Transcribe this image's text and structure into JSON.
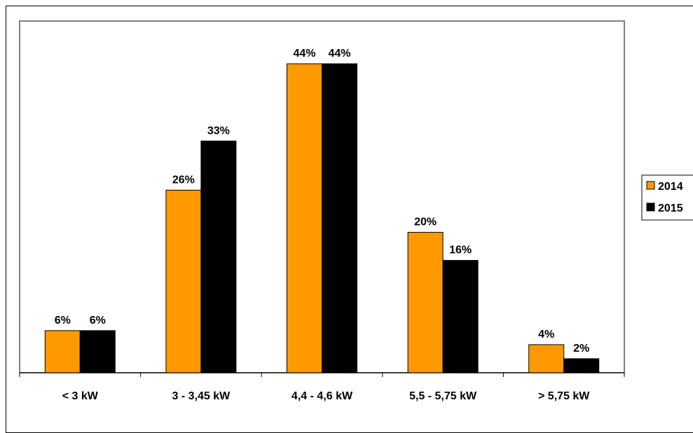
{
  "chart_data": {
    "type": "bar",
    "categories": [
      "< 3 kW",
      "3 - 3,45 kW",
      "4,4 - 4,6 kW",
      "5,5 - 5,75 kW",
      "> 5,75 kW"
    ],
    "series": [
      {
        "name": "2014",
        "values": [
          6,
          26,
          44,
          20,
          4
        ],
        "labels": [
          "6%",
          "26%",
          "44%",
          "20%",
          "4%"
        ],
        "color": "#FF9900"
      },
      {
        "name": "2015",
        "values": [
          6,
          33,
          44,
          16,
          2
        ],
        "labels": [
          "6%",
          "33%",
          "44%",
          "16%",
          "2%"
        ],
        "color": "#000000"
      }
    ],
    "title": "",
    "xlabel": "",
    "ylabel": "",
    "ylim": [
      0,
      44
    ],
    "grid": false,
    "legend": "right",
    "plot_border_color": "#808080"
  }
}
